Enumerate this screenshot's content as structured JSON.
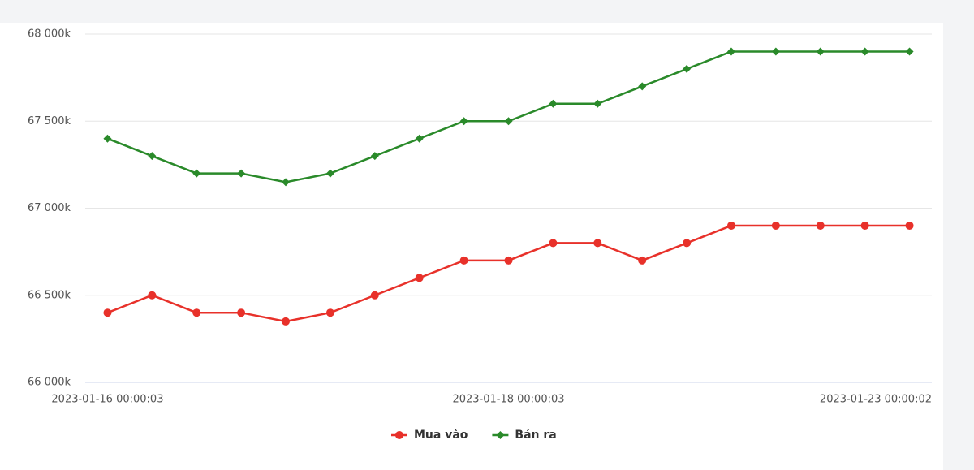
{
  "chart_data": {
    "type": "line",
    "categories": [
      "2023-01-16 00:00:03",
      null,
      null,
      null,
      null,
      null,
      null,
      null,
      null,
      "2023-01-18 00:00:03",
      null,
      null,
      null,
      null,
      null,
      null,
      null,
      null,
      "2023-01-23 00:00:02"
    ],
    "series": [
      {
        "name": "Mua vào",
        "color": "#e8312a",
        "marker": "circle",
        "values": [
          66400,
          66500,
          66400,
          66400,
          66350,
          66400,
          66500,
          66600,
          66700,
          66700,
          66800,
          66800,
          66700,
          66800,
          66900,
          66900,
          66900,
          66900,
          66900
        ]
      },
      {
        "name": "Bán ra",
        "color": "#2a8a2a",
        "marker": "diamond",
        "values": [
          67400,
          67300,
          67200,
          67200,
          67150,
          67200,
          67300,
          67400,
          67500,
          67500,
          67600,
          67600,
          67700,
          67800,
          67900,
          67900,
          67900,
          67900,
          67900
        ]
      }
    ],
    "ylim": [
      66000,
      68000
    ],
    "yticks": [
      {
        "value": 66000,
        "label": "66 000k"
      },
      {
        "value": 66500,
        "label": "66 500k"
      },
      {
        "value": 67000,
        "label": "67 000k"
      },
      {
        "value": 67500,
        "label": "67 500k"
      },
      {
        "value": 68000,
        "label": "68 000k"
      }
    ],
    "grid": true,
    "legend": "bottom"
  }
}
